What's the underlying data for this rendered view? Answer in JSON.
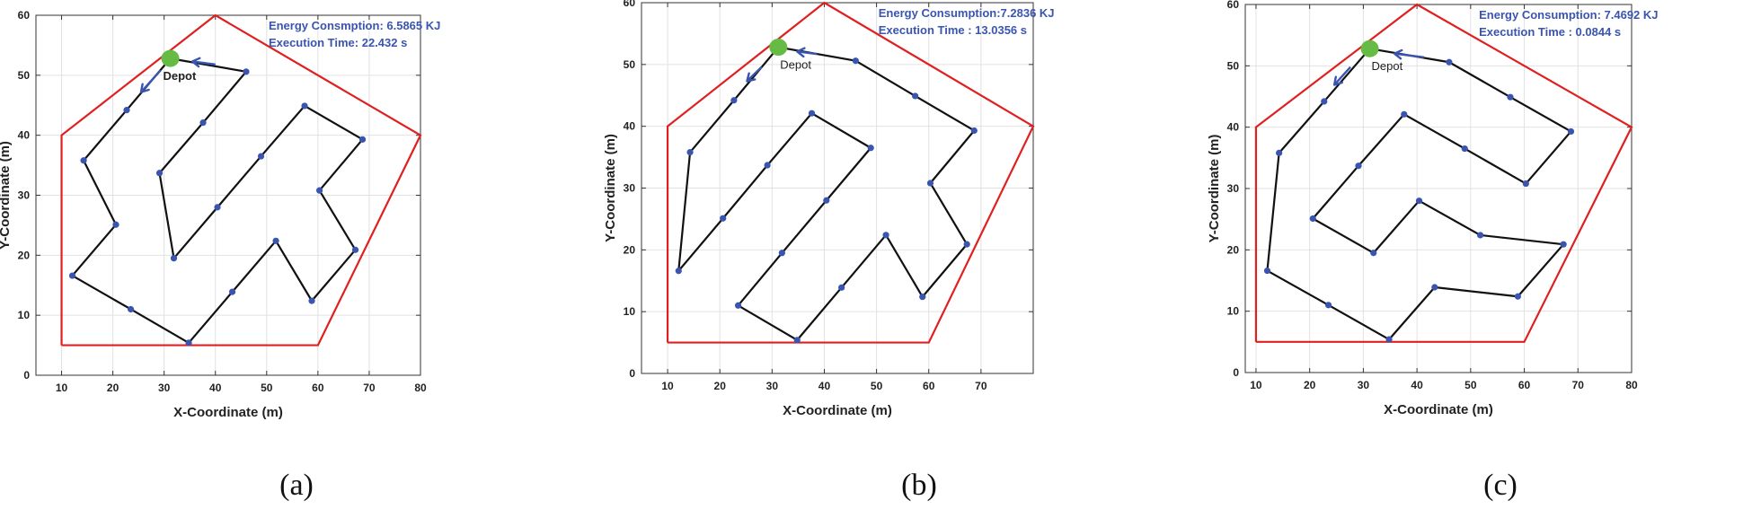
{
  "figure": {
    "captions": [
      "(a)",
      "(b)",
      "(c)"
    ]
  },
  "chart_data": [
    {
      "type": "line",
      "panel_label": "(a)",
      "title": "",
      "xlabel": "X-Coordinate (m)",
      "ylabel": "Y-Coordinate (m)",
      "xlim": [
        5,
        80
      ],
      "ylim": [
        0,
        60
      ],
      "xticks": [
        10,
        20,
        30,
        40,
        50,
        60,
        70,
        80
      ],
      "yticks": [
        0,
        10,
        20,
        30,
        40,
        50,
        60
      ],
      "grid": true,
      "annotations": [
        "Energy Consmption: 6.5865 KJ",
        "Execution  Time: 22.432 s"
      ],
      "depot": {
        "label": "Depot",
        "x": 31.2,
        "y": 52.8,
        "color": "#66bb44"
      },
      "boundary": {
        "color": "#e02020",
        "points": [
          [
            10,
            5
          ],
          [
            10,
            40
          ],
          [
            40,
            60
          ],
          [
            80,
            40
          ],
          [
            60,
            5
          ],
          [
            10,
            5
          ]
        ]
      },
      "route": {
        "color": "#111111",
        "marker_color": "#3a55b0",
        "points": [
          [
            31.2,
            52.8
          ],
          [
            22.7,
            44.2
          ],
          [
            14.3,
            35.8
          ],
          [
            20.6,
            25.1
          ],
          [
            12.1,
            16.6
          ],
          [
            23.5,
            11.0
          ],
          [
            34.8,
            5.4
          ],
          [
            43.3,
            13.9
          ],
          [
            51.8,
            22.4
          ],
          [
            58.8,
            12.4
          ],
          [
            67.3,
            20.9
          ],
          [
            60.3,
            30.8
          ],
          [
            68.7,
            39.3
          ],
          [
            57.4,
            44.9
          ],
          [
            48.9,
            36.5
          ],
          [
            40.4,
            28.0
          ],
          [
            31.9,
            19.5
          ],
          [
            29.1,
            33.7
          ],
          [
            37.6,
            42.1
          ],
          [
            46.0,
            50.6
          ],
          [
            31.2,
            52.8
          ]
        ]
      },
      "arrows": [
        {
          "from": [
            29.3,
            50.8
          ],
          "to": [
            25.5,
            47.2
          ]
        },
        {
          "from": [
            40.0,
            51.8
          ],
          "to": [
            35.5,
            52.3
          ]
        }
      ]
    },
    {
      "type": "line",
      "panel_label": "(b)",
      "title": "",
      "xlabel": "X-Coordinate (m)",
      "ylabel": "Y-Coordinate (m)",
      "xlim": [
        5,
        80
      ],
      "ylim": [
        0,
        60
      ],
      "xticks": [
        10,
        20,
        30,
        40,
        50,
        60,
        70
      ],
      "yticks": [
        0,
        10,
        20,
        30,
        40,
        50,
        60
      ],
      "grid": true,
      "annotations": [
        "Energy Consumption:7.2836 KJ",
        "Execution Time : 13.0356 s"
      ],
      "depot": {
        "label": "Depot",
        "x": 31.2,
        "y": 52.8,
        "color": "#66bb44"
      },
      "boundary": {
        "color": "#e02020",
        "points": [
          [
            10,
            5
          ],
          [
            10,
            40
          ],
          [
            40,
            60
          ],
          [
            80,
            40
          ],
          [
            60,
            5
          ],
          [
            10,
            5
          ]
        ]
      },
      "route": {
        "color": "#111111",
        "marker_color": "#3a55b0",
        "points": [
          [
            31.2,
            52.8
          ],
          [
            22.7,
            44.2
          ],
          [
            14.3,
            35.8
          ],
          [
            12.1,
            16.6
          ],
          [
            20.6,
            25.1
          ],
          [
            29.1,
            33.7
          ],
          [
            37.6,
            42.1
          ],
          [
            48.9,
            36.5
          ],
          [
            40.4,
            28.0
          ],
          [
            31.9,
            19.5
          ],
          [
            23.5,
            11.0
          ],
          [
            34.8,
            5.4
          ],
          [
            43.3,
            13.9
          ],
          [
            51.8,
            22.4
          ],
          [
            58.8,
            12.4
          ],
          [
            67.3,
            20.9
          ],
          [
            60.3,
            30.8
          ],
          [
            68.7,
            39.3
          ],
          [
            57.4,
            44.9
          ],
          [
            46.0,
            50.6
          ],
          [
            31.2,
            52.8
          ]
        ]
      },
      "arrows": [
        {
          "from": [
            28.0,
            49.6
          ],
          "to": [
            25.2,
            47.3
          ]
        },
        {
          "from": [
            38.6,
            51.7
          ],
          "to": [
            34.8,
            52.1
          ]
        }
      ]
    },
    {
      "type": "line",
      "panel_label": "(c)",
      "title": "",
      "xlabel": "X-Coordinate (m)",
      "ylabel": "Y-Coordinate (m)",
      "xlim": [
        8,
        80
      ],
      "ylim": [
        0,
        60
      ],
      "xticks": [
        10,
        20,
        30,
        40,
        50,
        60,
        70,
        80
      ],
      "yticks": [
        0,
        10,
        20,
        30,
        40,
        50,
        60
      ],
      "grid": true,
      "annotations": [
        "Energy Consumption: 7.4692 KJ",
        "Execution Time : 0.0844 s"
      ],
      "depot": {
        "label": "Depot",
        "x": 31.2,
        "y": 52.8,
        "color": "#66bb44"
      },
      "boundary": {
        "color": "#e02020",
        "points": [
          [
            10,
            5
          ],
          [
            10,
            40
          ],
          [
            40,
            60
          ],
          [
            80,
            40
          ],
          [
            60,
            5
          ],
          [
            10,
            5
          ]
        ]
      },
      "route": {
        "color": "#111111",
        "marker_color": "#3a55b0",
        "points": [
          [
            31.2,
            52.8
          ],
          [
            22.7,
            44.2
          ],
          [
            14.3,
            35.8
          ],
          [
            12.1,
            16.6
          ],
          [
            23.5,
            11.0
          ],
          [
            34.8,
            5.4
          ],
          [
            43.3,
            13.9
          ],
          [
            58.8,
            12.4
          ],
          [
            67.3,
            20.9
          ],
          [
            51.8,
            22.4
          ],
          [
            40.4,
            28.0
          ],
          [
            31.9,
            19.5
          ],
          [
            20.6,
            25.1
          ],
          [
            29.1,
            33.7
          ],
          [
            37.6,
            42.1
          ],
          [
            48.9,
            36.5
          ],
          [
            60.3,
            30.8
          ],
          [
            68.7,
            39.3
          ],
          [
            57.4,
            44.9
          ],
          [
            46.0,
            50.6
          ],
          [
            31.2,
            52.8
          ]
        ]
      },
      "arrows": [
        {
          "from": [
            27.6,
            49.8
          ],
          "to": [
            24.6,
            46.9
          ]
        },
        {
          "from": [
            41.3,
            51.4
          ],
          "to": [
            35.8,
            52.0
          ]
        }
      ]
    }
  ]
}
